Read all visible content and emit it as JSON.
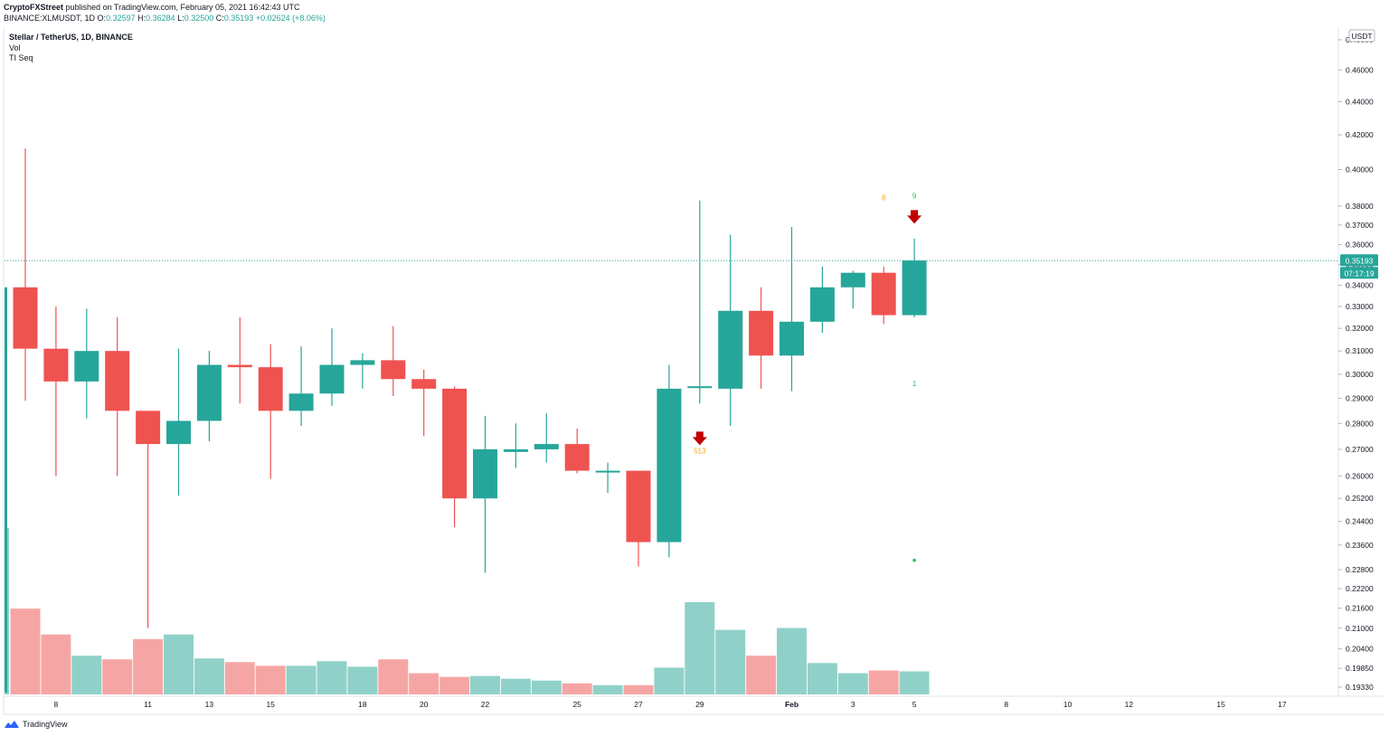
{
  "publish": {
    "author": "CryptoFXStreet",
    "text": "published on TradingView.com, February 05, 2021 16:42:43 UTC"
  },
  "ohlc": {
    "symbol": "BINANCE:XLMUSDT, 1D",
    "open_label": "O:",
    "open": "0.32597",
    "high_label": "H:",
    "high": "0.36284",
    "low_label": "L:",
    "low": "0.32500",
    "close_label": "C:",
    "close": "0.35193",
    "change": "+0.02624 (+8.06%)"
  },
  "legend": {
    "title": "Stellar / TetherUS, 1D, BINANCE",
    "vol": "Vol",
    "seq": "TI Seq"
  },
  "footer": {
    "brand": "TradingView"
  },
  "colors": {
    "up": "#26a69a",
    "down": "#ef5350",
    "vol_up": "#8fd1c8",
    "vol_down": "#f5a6a4",
    "arrow": "#c00000",
    "seq_orange": "#f4a31d",
    "seq_green": "#2ebd5b"
  },
  "chart_data": {
    "type": "candlestick",
    "title": "Stellar / TetherUS, 1D, BINANCE",
    "y_axis_unit": "USDT",
    "y_scale": "log",
    "y_ticks": [
      "0.48000",
      "0.46000",
      "0.44000",
      "0.42000",
      "0.40000",
      "0.38000",
      "0.37000",
      "0.36000",
      "0.35000",
      "0.34000",
      "0.33000",
      "0.32000",
      "0.31000",
      "0.30000",
      "0.29000",
      "0.28000",
      "0.27000",
      "0.26000",
      "0.25200",
      "0.24400",
      "0.23600",
      "0.22800",
      "0.22200",
      "0.21600",
      "0.21000",
      "0.20400",
      "0.19850",
      "0.19330"
    ],
    "x_ticks": [
      {
        "label": "8",
        "idx": 1
      },
      {
        "label": "11",
        "idx": 4
      },
      {
        "label": "13",
        "idx": 6
      },
      {
        "label": "15",
        "idx": 8
      },
      {
        "label": "18",
        "idx": 11
      },
      {
        "label": "20",
        "idx": 13
      },
      {
        "label": "22",
        "idx": 15
      },
      {
        "label": "25",
        "idx": 18
      },
      {
        "label": "27",
        "idx": 20
      },
      {
        "label": "29",
        "idx": 22
      },
      {
        "label": "Feb",
        "idx": 25,
        "bold": true
      },
      {
        "label": "3",
        "idx": 27
      },
      {
        "label": "5",
        "idx": 29
      },
      {
        "label": "8",
        "idx": 32
      },
      {
        "label": "10",
        "idx": 34
      },
      {
        "label": "12",
        "idx": 36
      },
      {
        "label": "15",
        "idx": 39
      },
      {
        "label": "17",
        "idx": 41
      }
    ],
    "price_label": "0.35193",
    "countdown": "07:17:19",
    "candles": [
      {
        "o": 0.339,
        "h": 0.412,
        "l": 0.289,
        "c": 0.311
      },
      {
        "o": 0.311,
        "h": 0.33,
        "l": 0.26,
        "c": 0.297
      },
      {
        "o": 0.297,
        "h": 0.329,
        "l": 0.282,
        "c": 0.31
      },
      {
        "o": 0.31,
        "h": 0.325,
        "l": 0.26,
        "c": 0.285
      },
      {
        "o": 0.285,
        "h": 0.284,
        "l": 0.21,
        "c": 0.272
      },
      {
        "o": 0.272,
        "h": 0.311,
        "l": 0.253,
        "c": 0.281
      },
      {
        "o": 0.281,
        "h": 0.31,
        "l": 0.273,
        "c": 0.304
      },
      {
        "o": 0.304,
        "h": 0.325,
        "l": 0.288,
        "c": 0.303
      },
      {
        "o": 0.303,
        "h": 0.313,
        "l": 0.259,
        "c": 0.285
      },
      {
        "o": 0.285,
        "h": 0.312,
        "l": 0.279,
        "c": 0.292
      },
      {
        "o": 0.292,
        "h": 0.32,
        "l": 0.287,
        "c": 0.304
      },
      {
        "o": 0.304,
        "h": 0.309,
        "l": 0.294,
        "c": 0.306
      },
      {
        "o": 0.306,
        "h": 0.321,
        "l": 0.291,
        "c": 0.298
      },
      {
        "o": 0.298,
        "h": 0.302,
        "l": 0.275,
        "c": 0.294
      },
      {
        "o": 0.294,
        "h": 0.295,
        "l": 0.242,
        "c": 0.252
      },
      {
        "o": 0.252,
        "h": 0.283,
        "l": 0.227,
        "c": 0.27
      },
      {
        "o": 0.269,
        "h": 0.28,
        "l": 0.263,
        "c": 0.27
      },
      {
        "o": 0.27,
        "h": 0.284,
        "l": 0.265,
        "c": 0.272
      },
      {
        "o": 0.272,
        "h": 0.278,
        "l": 0.261,
        "c": 0.262
      },
      {
        "o": 0.262,
        "h": 0.265,
        "l": 0.254,
        "c": 0.262
      },
      {
        "o": 0.262,
        "h": 0.262,
        "l": 0.229,
        "c": 0.237
      },
      {
        "o": 0.237,
        "h": 0.304,
        "l": 0.232,
        "c": 0.294
      },
      {
        "o": 0.295,
        "h": 0.383,
        "l": 0.288,
        "c": 0.295
      },
      {
        "o": 0.294,
        "h": 0.365,
        "l": 0.279,
        "c": 0.328
      },
      {
        "o": 0.328,
        "h": 0.339,
        "l": 0.294,
        "c": 0.308
      },
      {
        "o": 0.308,
        "h": 0.369,
        "l": 0.293,
        "c": 0.323
      },
      {
        "o": 0.323,
        "h": 0.349,
        "l": 0.318,
        "c": 0.339
      },
      {
        "o": 0.339,
        "h": 0.347,
        "l": 0.329,
        "c": 0.346
      },
      {
        "o": 0.346,
        "h": 0.349,
        "l": 0.322,
        "c": 0.326
      },
      {
        "o": 0.326,
        "h": 0.363,
        "l": 0.325,
        "c": 0.352
      }
    ],
    "volume": [
      0.93,
      0.65,
      0.42,
      0.38,
      0.6,
      0.65,
      0.39,
      0.35,
      0.31,
      0.31,
      0.36,
      0.3,
      0.38,
      0.23,
      0.19,
      0.2,
      0.17,
      0.15,
      0.12,
      0.1,
      0.1,
      0.29,
      1.0,
      0.7,
      0.42,
      0.72,
      0.34,
      0.23,
      0.26,
      0.25
    ],
    "annotations": [
      {
        "type": "down_arrow",
        "idx": 22,
        "price": 0.274
      },
      {
        "type": "label",
        "idx": 22,
        "price": 0.2685,
        "text": "513",
        "color": "orange"
      },
      {
        "type": "down_arrow",
        "idx": 29,
        "price": 0.374
      },
      {
        "type": "label",
        "idx": 28,
        "price": 0.383,
        "text": "8",
        "color": "orange"
      },
      {
        "type": "label",
        "idx": 29,
        "price": 0.384,
        "text": "9",
        "color": "green"
      },
      {
        "type": "label",
        "idx": 29,
        "price": 0.295,
        "text": "1",
        "color": "green"
      },
      {
        "type": "dot",
        "idx": 29,
        "price": 0.231,
        "color": "green"
      }
    ]
  }
}
